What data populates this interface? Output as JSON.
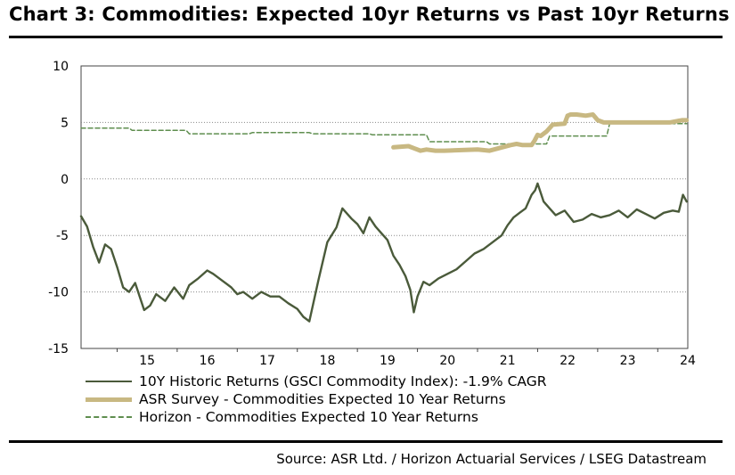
{
  "title": "Chart 3: Commodities: Expected 10yr Returns vs Past 10yr Returns",
  "source": "Source:  ASR Ltd. / Horizon Actuarial Services / LSEG Datastream",
  "colors": {
    "historic": "#4a5a3a",
    "asr": "#c8b882",
    "horizon": "#5f8e4f",
    "grid": "#8a8a8a"
  },
  "legend": {
    "historic": "10Y Historic Returns (GSCI Commodity Index): -1.9% CAGR",
    "asr": "ASR Survey - Commodities Expected 10 Year Returns",
    "horizon": "Horizon - Commodities Expected 10 Year Returns"
  },
  "chart_data": {
    "type": "line",
    "title": "Chart 3: Commodities: Expected 10yr Returns vs Past 10yr Returns",
    "xlim": [
      2014.4,
      2024.5
    ],
    "ylim": [
      -15,
      10
    ],
    "y_ticks": [
      10,
      5,
      0,
      -5,
      -10,
      -15
    ],
    "y_tick_labels": [
      "10",
      "5",
      "0",
      "-5",
      "-10",
      "-15"
    ],
    "x_ticks": [
      2015,
      2016,
      2017,
      2018,
      2019,
      2020,
      2021,
      2022,
      2023,
      2024
    ],
    "x_tick_labels": [
      "15",
      "16",
      "17",
      "18",
      "19",
      "20",
      "21",
      "22",
      "23",
      "24"
    ],
    "grid": "horizontal dotted",
    "series": [
      {
        "name": "10Y Historic Returns (GSCI Commodity Index): -1.9% CAGR",
        "style": "solid",
        "x": [
          2014.4,
          2014.5,
          2014.6,
          2014.7,
          2014.8,
          2014.9,
          2015.0,
          2015.1,
          2015.2,
          2015.3,
          2015.45,
          2015.55,
          2015.65,
          2015.8,
          2015.95,
          2016.1,
          2016.2,
          2016.35,
          2016.5,
          2016.6,
          2016.75,
          2016.9,
          2017.0,
          2017.1,
          2017.25,
          2017.4,
          2017.55,
          2017.7,
          2017.85,
          2018.0,
          2018.1,
          2018.2,
          2018.35,
          2018.5,
          2018.65,
          2018.75,
          2018.9,
          2019.0,
          2019.1,
          2019.2,
          2019.3,
          2019.4,
          2019.5,
          2019.6,
          2019.7,
          2019.8,
          2019.88,
          2019.94,
          2020.0,
          2020.1,
          2020.2,
          2020.35,
          2020.5,
          2020.65,
          2020.8,
          2020.95,
          2021.1,
          2021.25,
          2021.4,
          2021.5,
          2021.6,
          2021.7,
          2021.8,
          2021.9,
          2021.96,
          2022.0,
          2022.05,
          2022.1,
          2022.2,
          2022.3,
          2022.45,
          2022.6,
          2022.75,
          2022.9,
          2023.05,
          2023.2,
          2023.35,
          2023.5,
          2023.65,
          2023.8,
          2023.95,
          2024.1,
          2024.25,
          2024.35,
          2024.42,
          2024.48
        ],
        "values": [
          -3.3,
          -4.2,
          -6.0,
          -7.4,
          -5.8,
          -6.2,
          -7.8,
          -9.6,
          -10.0,
          -9.2,
          -11.6,
          -11.2,
          -10.2,
          -10.8,
          -9.6,
          -10.6,
          -9.4,
          -8.8,
          -8.1,
          -8.4,
          -9.0,
          -9.6,
          -10.2,
          -10.0,
          -10.6,
          -10.0,
          -10.4,
          -10.4,
          -11.0,
          -11.5,
          -12.2,
          -12.6,
          -9.0,
          -5.6,
          -4.3,
          -2.6,
          -3.5,
          -4.0,
          -4.8,
          -3.4,
          -4.2,
          -4.8,
          -5.4,
          -6.8,
          -7.6,
          -8.6,
          -9.8,
          -11.8,
          -10.4,
          -9.1,
          -9.4,
          -8.8,
          -8.4,
          -8.0,
          -7.3,
          -6.6,
          -6.2,
          -5.6,
          -5.0,
          -4.1,
          -3.4,
          -3.0,
          -2.6,
          -1.4,
          -1.0,
          -0.4,
          -1.2,
          -2.0,
          -2.6,
          -3.2,
          -2.8,
          -3.8,
          -3.6,
          -3.1,
          -3.4,
          -3.2,
          -2.8,
          -3.4,
          -2.7,
          -3.1,
          -3.5,
          -3.0,
          -2.8,
          -2.9,
          -1.4,
          -2.0
        ]
      },
      {
        "name": "ASR Survey - Commodities Expected 10 Year Returns",
        "style": "thick",
        "x": [
          2019.6,
          2019.85,
          2019.95,
          2020.05,
          2020.15,
          2020.3,
          2020.45,
          2021.0,
          2021.2,
          2021.55,
          2021.65,
          2021.75,
          2021.9,
          2021.95,
          2022.0,
          2022.05,
          2022.15,
          2022.25,
          2022.45,
          2022.5,
          2022.55,
          2022.65,
          2022.8,
          2022.92,
          2023.0,
          2023.1,
          2023.5,
          2023.8,
          2024.0,
          2024.2,
          2024.4,
          2024.48
        ],
        "values": [
          2.8,
          2.9,
          2.7,
          2.5,
          2.6,
          2.5,
          2.5,
          2.6,
          2.5,
          3.0,
          3.1,
          3.0,
          3.0,
          3.4,
          3.9,
          3.8,
          4.2,
          4.8,
          4.9,
          5.6,
          5.7,
          5.7,
          5.6,
          5.7,
          5.2,
          5.0,
          5.0,
          5.0,
          5.0,
          5.0,
          5.2,
          5.2
        ]
      },
      {
        "name": "Horizon - Commodities Expected 10 Year Returns",
        "style": "dashed",
        "x": [
          2014.4,
          2015.2,
          2015.25,
          2016.15,
          2016.2,
          2017.2,
          2017.25,
          2018.2,
          2018.25,
          2019.2,
          2019.25,
          2020.15,
          2020.2,
          2021.15,
          2021.2,
          2022.15,
          2022.2,
          2023.15,
          2023.2,
          2024.48
        ],
        "values": [
          4.5,
          4.5,
          4.3,
          4.3,
          4.0,
          4.0,
          4.1,
          4.1,
          4.0,
          4.0,
          3.9,
          3.9,
          3.3,
          3.3,
          3.1,
          3.1,
          3.8,
          3.8,
          4.9,
          4.9
        ]
      }
    ]
  }
}
